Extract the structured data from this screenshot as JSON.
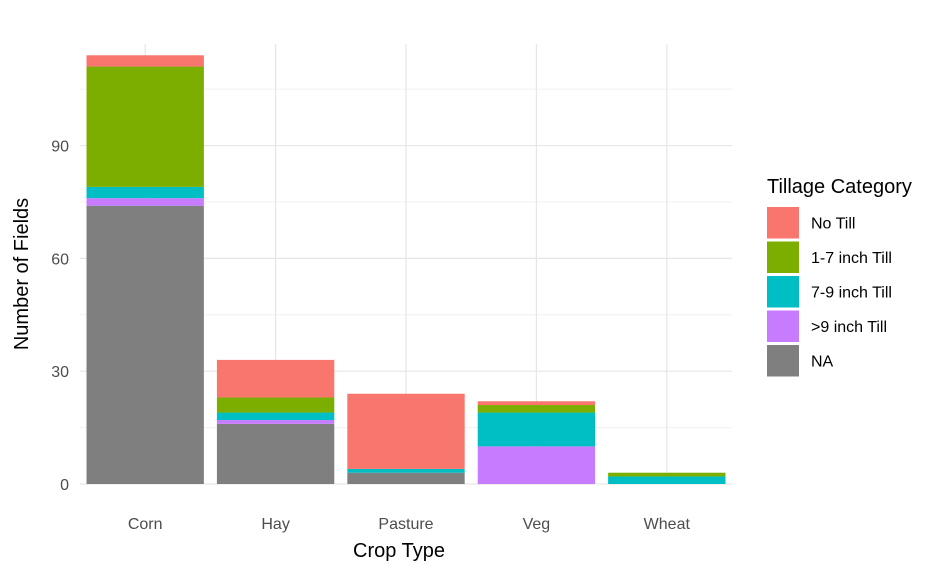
{
  "chart_data": {
    "type": "bar",
    "stacked": true,
    "xlabel": "Crop Type",
    "ylabel": "Number of Fields",
    "categories": [
      "Corn",
      "Hay",
      "Pasture",
      "Veg",
      "Wheat"
    ],
    "yticks": [
      0,
      30,
      60,
      90
    ],
    "ylim": [
      0,
      117
    ],
    "grid": true,
    "legend": {
      "title": "Tillage Category",
      "position": "right"
    },
    "series": [
      {
        "name": "NA",
        "color": "#7f7f7f",
        "values": [
          74,
          16,
          3,
          0,
          0
        ]
      },
      {
        "name": ">9 inch Till",
        "color": "#c77cff",
        "values": [
          2,
          1,
          0,
          10,
          0
        ]
      },
      {
        "name": "7-9 inch Till",
        "color": "#00bfc4",
        "values": [
          3,
          2,
          1,
          9,
          2
        ]
      },
      {
        "name": "1-7 inch Till",
        "color": "#7cae00",
        "values": [
          32,
          4,
          0,
          2,
          1
        ]
      },
      {
        "name": "No Till",
        "color": "#f8766d",
        "values": [
          3,
          10,
          20,
          1,
          0
        ]
      }
    ],
    "legend_order": [
      "No Till",
      "1-7 inch Till",
      "7-9 inch Till",
      ">9 inch Till",
      "NA"
    ]
  }
}
